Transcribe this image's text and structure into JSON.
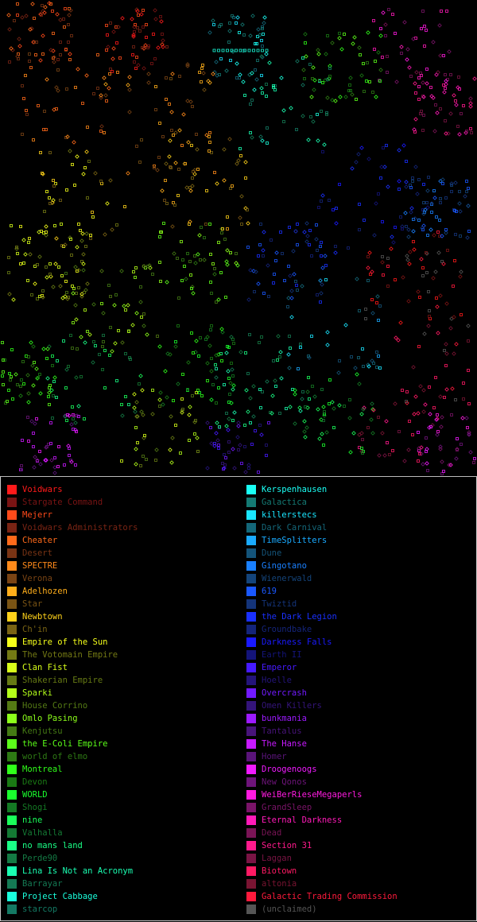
{
  "map": {
    "background": "#000000"
  },
  "legend": {
    "left": [
      {
        "name": "Voidwars",
        "color": "#ff1a1a"
      },
      {
        "name": "Stargate Command",
        "color": "#7a1414"
      },
      {
        "name": "Mejerr",
        "color": "#ff4a1a"
      },
      {
        "name": "Voidwars Administrators",
        "color": "#7a2414"
      },
      {
        "name": "Cheater",
        "color": "#ff6a1a"
      },
      {
        "name": "Desert",
        "color": "#7a3414"
      },
      {
        "name": "SPECTRE",
        "color": "#ff8a1a"
      },
      {
        "name": "Verona",
        "color": "#7a4414"
      },
      {
        "name": "Adelhozen",
        "color": "#ffae1a"
      },
      {
        "name": "Star",
        "color": "#7a5414"
      },
      {
        "name": "Newbtown",
        "color": "#ffd21a"
      },
      {
        "name": "Ch'in",
        "color": "#7a6414"
      },
      {
        "name": "Empire of the Sun",
        "color": "#f5ff1a"
      },
      {
        "name": "The Votomain Empire",
        "color": "#747a14"
      },
      {
        "name": "Clan Fist",
        "color": "#d8ff1a"
      },
      {
        "name": "Shakerian Empire",
        "color": "#667a14"
      },
      {
        "name": "Sparki",
        "color": "#b4ff1a"
      },
      {
        "name": "House Corrino",
        "color": "#547a14"
      },
      {
        "name": "Omlo Pasing",
        "color": "#8cff1a"
      },
      {
        "name": "Kenjutsu",
        "color": "#447a14"
      },
      {
        "name": "the E-Coli Empire",
        "color": "#5cff1a"
      },
      {
        "name": "world of elmo",
        "color": "#2e7a14"
      },
      {
        "name": "Montreal",
        "color": "#30ff1a"
      },
      {
        "name": "Devon",
        "color": "#1a7a14"
      },
      {
        "name": "WORLD",
        "color": "#1aff2e"
      },
      {
        "name": "Shogi",
        "color": "#147a24"
      },
      {
        "name": "nine",
        "color": "#1aff5a"
      },
      {
        "name": "Valhalla",
        "color": "#147a34"
      },
      {
        "name": "no mans land",
        "color": "#1aff86"
      },
      {
        "name": "Perde90",
        "color": "#147a44"
      },
      {
        "name": "Lina Is Not an Acronym",
        "color": "#1affb2"
      },
      {
        "name": "Barrayar",
        "color": "#147a54"
      },
      {
        "name": "Project Cabbage",
        "color": "#1affdc"
      },
      {
        "name": "starcop",
        "color": "#147a64"
      }
    ],
    "right": [
      {
        "name": "Kerspenhausen",
        "color": "#1afff5"
      },
      {
        "name": "Galactica",
        "color": "#147a74"
      },
      {
        "name": "killerstecs",
        "color": "#1ae6ff"
      },
      {
        "name": "Dark Carnival",
        "color": "#14687a"
      },
      {
        "name": "TimeSplitters",
        "color": "#1aaaff"
      },
      {
        "name": "Dune",
        "color": "#14547a"
      },
      {
        "name": "Gingotano",
        "color": "#1a80ff"
      },
      {
        "name": "Wienerwald",
        "color": "#14447a"
      },
      {
        "name": "619",
        "color": "#1a58ff"
      },
      {
        "name": "Twiztid",
        "color": "#14347a"
      },
      {
        "name": "the Dark Legion",
        "color": "#1a30ff"
      },
      {
        "name": "Groundbake",
        "color": "#14247a"
      },
      {
        "name": "Darkness Falls",
        "color": "#1a1aff"
      },
      {
        "name": "Earth II",
        "color": "#14147a"
      },
      {
        "name": "Emperor",
        "color": "#461aff"
      },
      {
        "name": "Hoelle",
        "color": "#24147a"
      },
      {
        "name": "Overcrash",
        "color": "#721aff"
      },
      {
        "name": "Omen Killers",
        "color": "#34147a"
      },
      {
        "name": "bunkmania",
        "color": "#9c1aff"
      },
      {
        "name": "Tantalus",
        "color": "#48147a"
      },
      {
        "name": "The Hanse",
        "color": "#c81aff"
      },
      {
        "name": "Homer",
        "color": "#5a147a"
      },
      {
        "name": "Droogenoogs",
        "color": "#f01aff"
      },
      {
        "name": "New Qonos",
        "color": "#6e147a"
      },
      {
        "name": "WeiBerRieseMegaperls",
        "color": "#ff1ae0"
      },
      {
        "name": "GrandSleep",
        "color": "#7a1468"
      },
      {
        "name": "Eternal Darkness",
        "color": "#ff1ab8"
      },
      {
        "name": "Dead",
        "color": "#7a1456"
      },
      {
        "name": "Section 31",
        "color": "#ff1a8c"
      },
      {
        "name": "Laggan",
        "color": "#7a1444"
      },
      {
        "name": "Biotown",
        "color": "#ff1a64"
      },
      {
        "name": "altonia",
        "color": "#7a1432"
      },
      {
        "name": "Galactic Trading Commission",
        "color": "#ff1a3c"
      },
      {
        "name": "(unclaimed)",
        "color": "#555555"
      }
    ]
  }
}
